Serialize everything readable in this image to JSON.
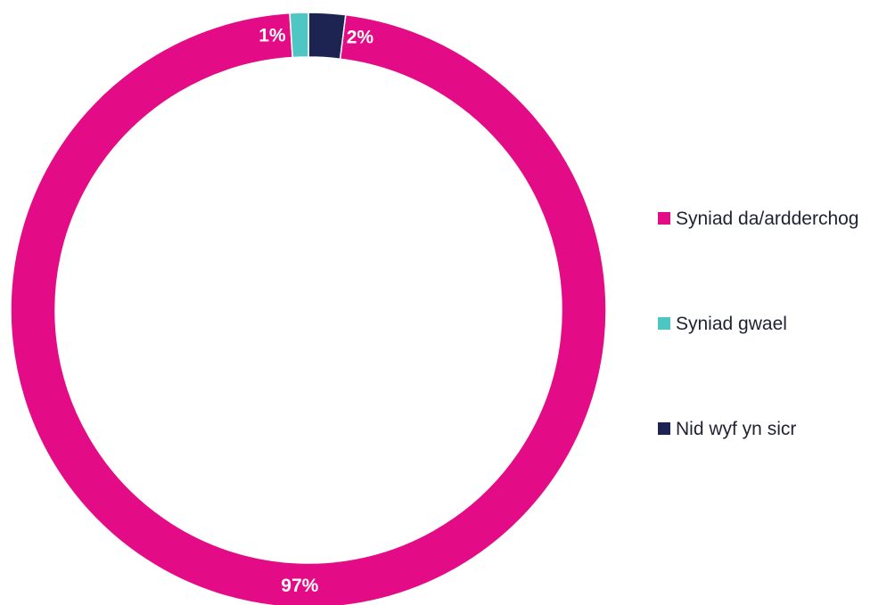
{
  "chart_data": {
    "type": "pie",
    "variant": "donut",
    "title": "",
    "series": [
      {
        "name": "",
        "slices": [
          {
            "label": "Syniad da/ardderchog",
            "value": 97,
            "display": "97%",
            "color": "#e30b86"
          },
          {
            "label": "Syniad gwael",
            "value": 1,
            "display": "1%",
            "color": "#4ec6c4"
          },
          {
            "label": "Nid wyf yn sicr",
            "value": 2,
            "display": "2%",
            "color": "#1d2451"
          }
        ]
      }
    ],
    "legend": {
      "position": "right",
      "items": [
        "Syniad da/ardderchog",
        "Syniad gwael",
        "Nid wyf yn sicr"
      ]
    }
  }
}
